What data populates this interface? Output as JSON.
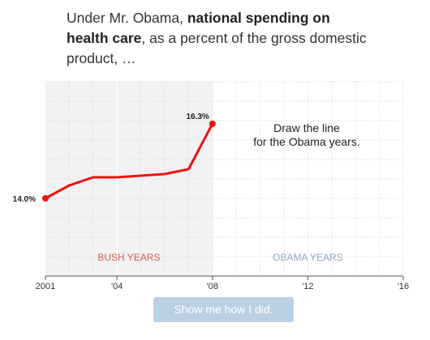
{
  "headline": {
    "lead": "Under Mr. Obama, ",
    "bold": "national spending on health care",
    "tail": ", as a percent of the gross domestic product, …"
  },
  "button": {
    "label": "Show me how I did."
  },
  "colors": {
    "line": "#ee1111",
    "bush_shade": "#f2f2f2",
    "bush_label": "#e0584d",
    "obama_label": "#8ea7c3",
    "grid": "#d6d6d6",
    "button_bg": "#bcd0e3"
  },
  "chart_data": {
    "type": "line",
    "title": "",
    "xlabel": "",
    "ylabel": "",
    "x_range": [
      2001,
      2016
    ],
    "y_range": [
      11.6,
      17.6
    ],
    "x_ticks": [
      2001,
      2004,
      2008,
      2012,
      2016
    ],
    "x_tick_labels": [
      "2001",
      "'04",
      "'08",
      "'12",
      "'16"
    ],
    "grid": true,
    "series": [
      {
        "x": [
          2001,
          2002,
          2003,
          2004,
          2005,
          2006,
          2007,
          2008
        ],
        "y": [
          14.0,
          14.4,
          14.65,
          14.65,
          14.7,
          14.75,
          14.9,
          16.3
        ]
      }
    ],
    "start_label": "14.0%",
    "end_label": "16.3%",
    "prompt_lines": [
      "Draw the line",
      "for the Obama years."
    ],
    "region_labels": {
      "bush": "BUSH YEARS",
      "obama": "OBAMA YEARS"
    },
    "shaded_range": [
      2001,
      2008
    ]
  }
}
